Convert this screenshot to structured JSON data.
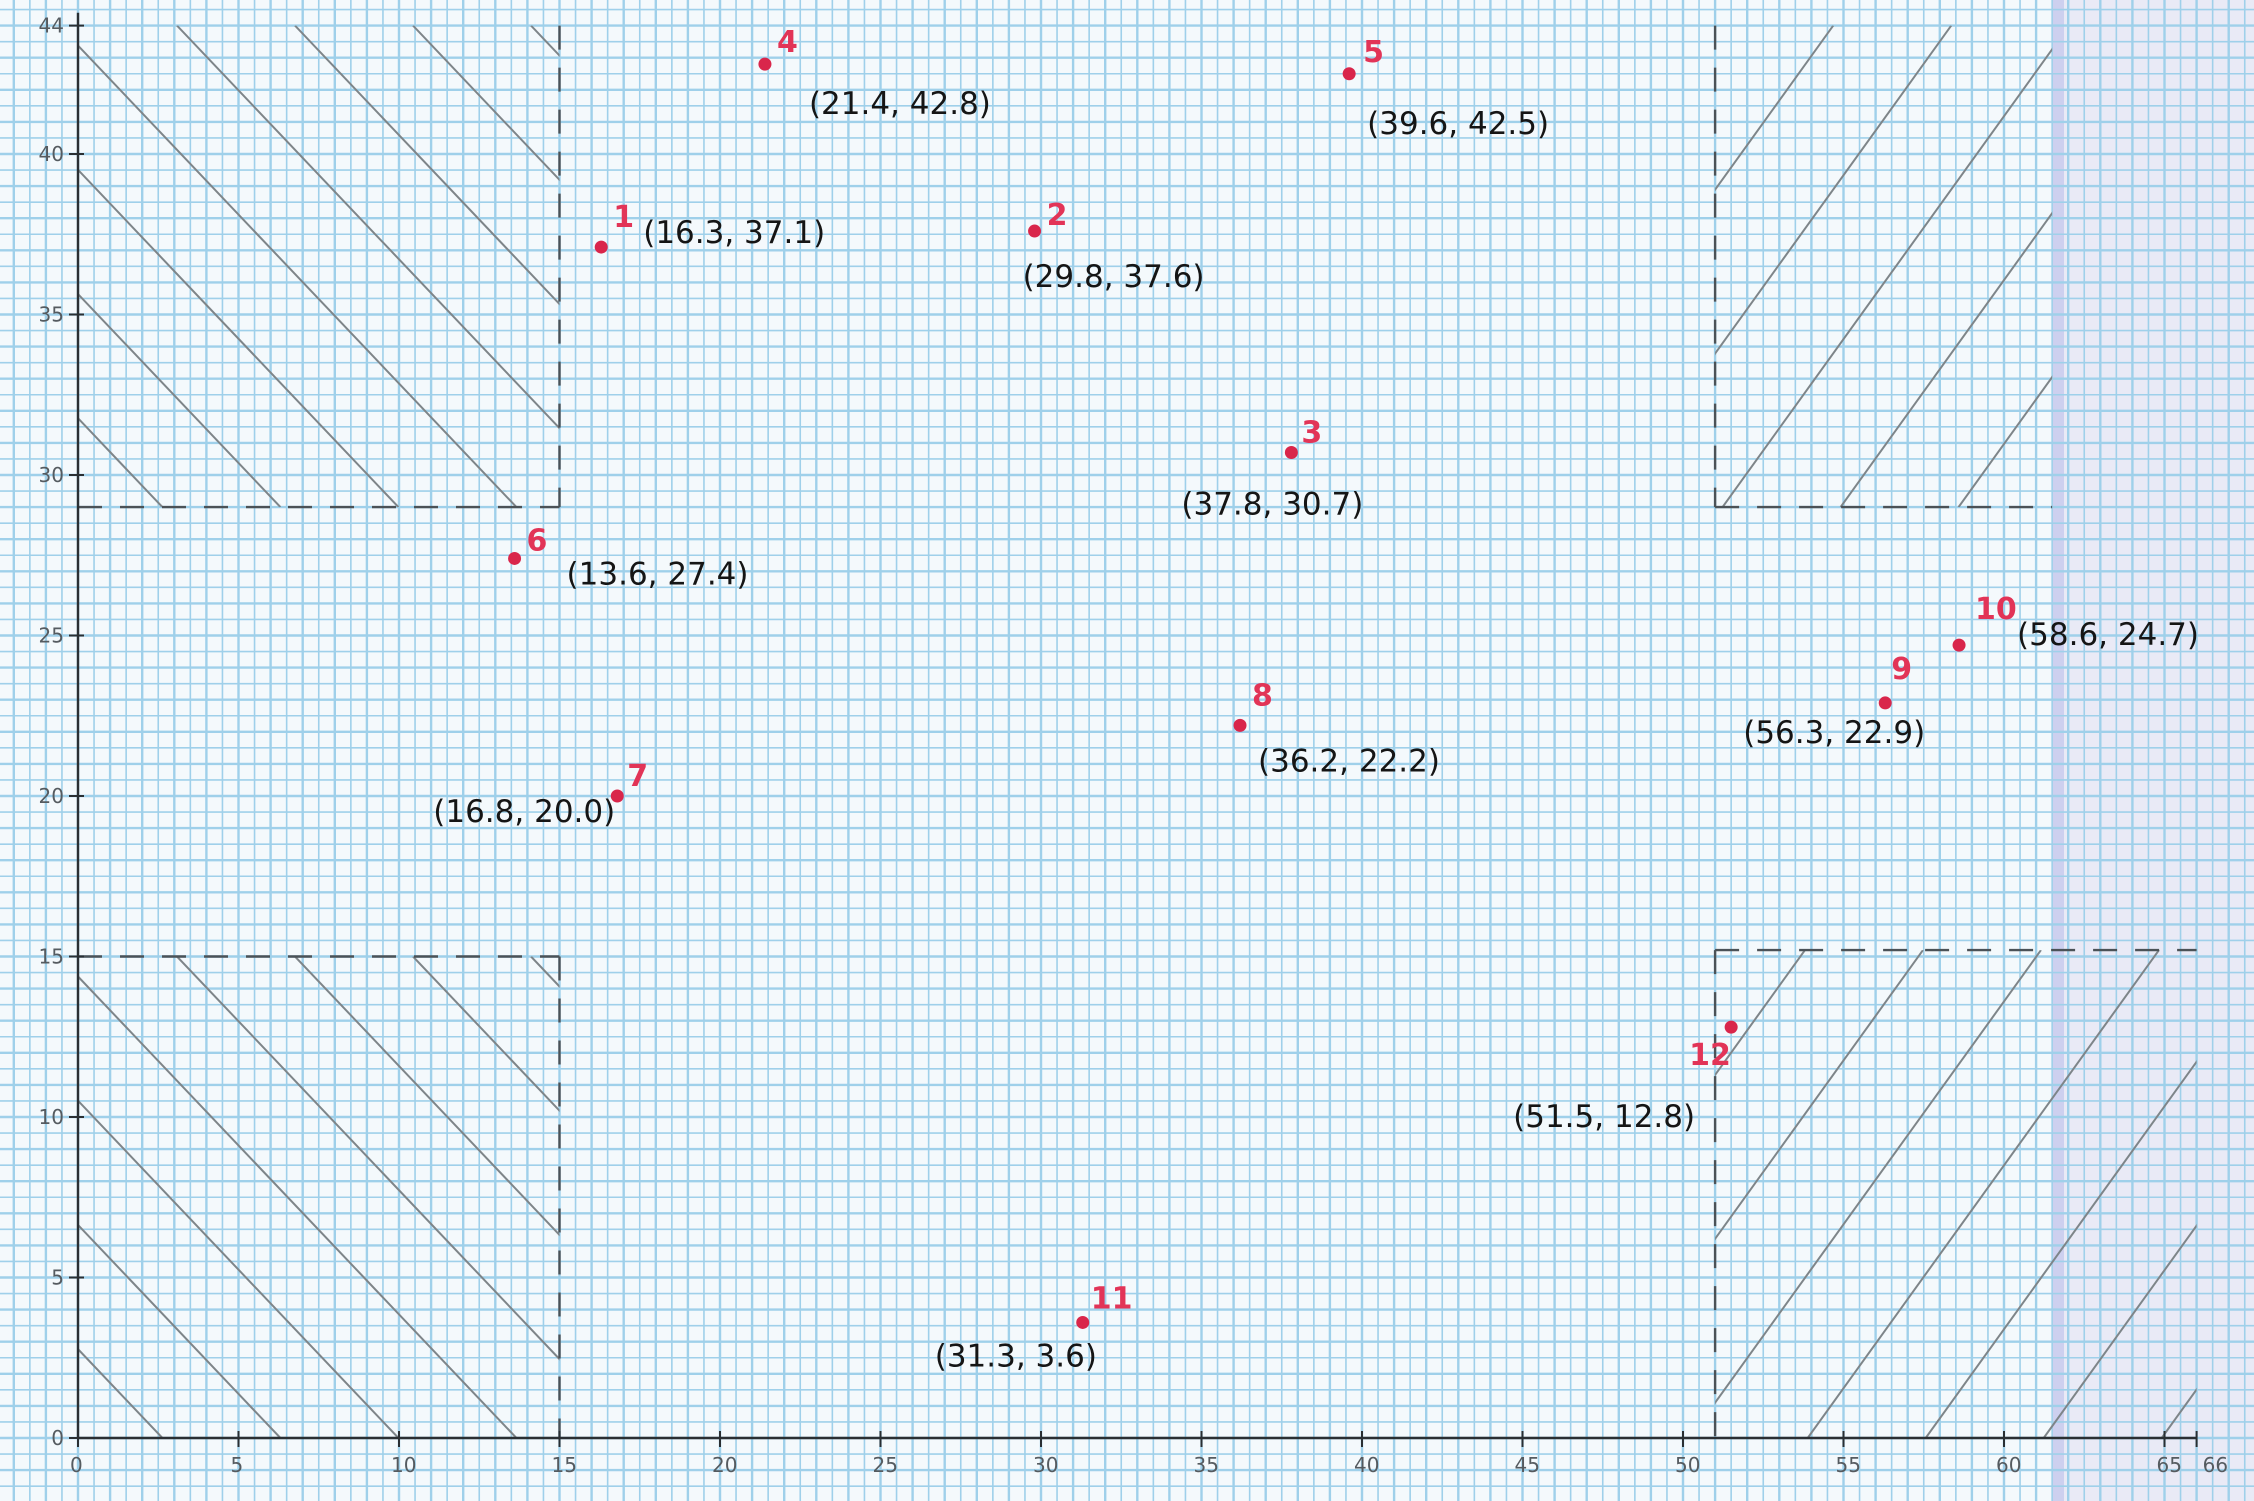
{
  "chart_data": {
    "type": "scatter",
    "title": "",
    "xlabel": "",
    "ylabel": "",
    "xlim": [
      0,
      66
    ],
    "ylim": [
      0,
      44
    ],
    "grid": true,
    "x_ticks": [
      "0",
      "5",
      "10",
      "15",
      "20",
      "25",
      "30",
      "35",
      "40",
      "45",
      "50",
      "55",
      "60",
      "65",
      "66"
    ],
    "y_ticks": [
      "0",
      "5",
      "10",
      "15",
      "20",
      "25",
      "30",
      "35",
      "40",
      "44"
    ],
    "points": [
      {
        "id": "1",
        "x": 16.3,
        "y": 37.1,
        "label": "(16.3, 37.1)"
      },
      {
        "id": "2",
        "x": 29.8,
        "y": 37.6,
        "label": "(29.8, 37.6)"
      },
      {
        "id": "3",
        "x": 37.8,
        "y": 30.7,
        "label": "(37.8, 30.7)"
      },
      {
        "id": "4",
        "x": 21.4,
        "y": 42.8,
        "label": "(21.4, 42.8)"
      },
      {
        "id": "5",
        "x": 39.6,
        "y": 42.5,
        "label": "(39.6, 42.5)"
      },
      {
        "id": "6",
        "x": 13.6,
        "y": 27.4,
        "label": "(13.6, 27.4)"
      },
      {
        "id": "7",
        "x": 16.8,
        "y": 20.0,
        "label": "(16.8, 20.0)"
      },
      {
        "id": "8",
        "x": 36.2,
        "y": 22.2,
        "label": "(36.2, 22.2)"
      },
      {
        "id": "9",
        "x": 56.3,
        "y": 22.9,
        "label": "(56.3, 22.9)"
      },
      {
        "id": "10",
        "x": 58.6,
        "y": 24.7,
        "label": "(58.6, 24.7)"
      },
      {
        "id": "11",
        "x": 31.3,
        "y": 3.6,
        "label": "(31.3, 3.6)"
      },
      {
        "id": "12",
        "x": 51.5,
        "y": 12.8,
        "label": "(51.5, 12.8)"
      }
    ],
    "regions": [
      {
        "name": "top-left",
        "x": [
          0,
          15
        ],
        "y": [
          29,
          44
        ],
        "hatch": "down-right"
      },
      {
        "name": "bottom-left",
        "x": [
          0,
          15
        ],
        "y": [
          0,
          15
        ],
        "hatch": "down-right"
      },
      {
        "name": "top-right",
        "x": [
          51,
          61.5
        ],
        "y": [
          29,
          44
        ],
        "hatch": "up-right"
      },
      {
        "name": "bottom-right",
        "x": [
          51,
          66
        ],
        "y": [
          0,
          15.2
        ],
        "hatch": "up-right"
      }
    ],
    "colors": {
      "grid": "#9fd0ea",
      "points": "#d9264b",
      "numbers": "#e23457",
      "paper": "#f4f9fc"
    }
  }
}
